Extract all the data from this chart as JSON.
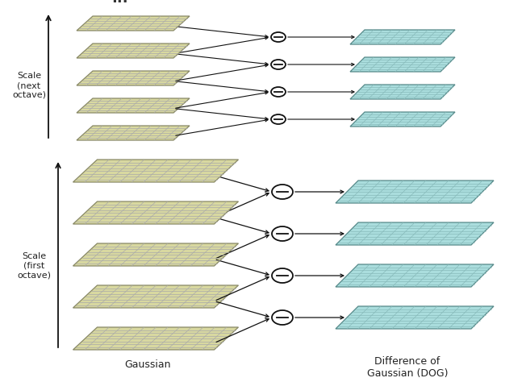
{
  "bg_color": "#ffffff",
  "gauss_fill": "#d8d8a0",
  "gauss_edge": "#888866",
  "gauss_grid": "#aaaaaa",
  "dog_fill": "#aadddd",
  "dog_edge": "#558888",
  "dog_grid": "#88bbbb",
  "arrow_color": "#111111",
  "circle_fill": "#ffffff",
  "circle_edge": "#111111",
  "label_gaussian": "Gaussian",
  "label_dog": "Difference of\nGaussian (DOG)",
  "label_scale_next": "Scale\n(next\noctave)",
  "label_scale_first": "Scale\n(first\noctave)",
  "dots": "...",
  "fig_w": 6.52,
  "fig_h": 4.74,
  "dpi": 100
}
